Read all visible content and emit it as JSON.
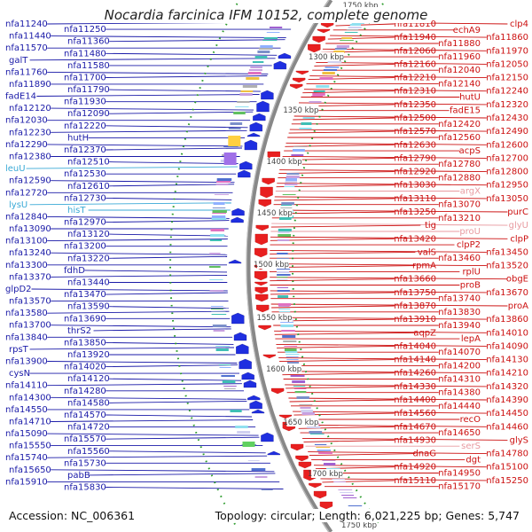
{
  "title": "Nocardia farcinica IFM 10152, complete genome",
  "accession": "Accession: NC_006361",
  "topology_text": "Topology: circular; Length: 6,021,225 bp; Genes: 5,747",
  "colors": {
    "forward_gene": "#e82020",
    "reverse_gene": "#1f2fe0",
    "left_label": "#1a1aa8",
    "right_label": "#cc1010",
    "rna_label": "#39a9d6",
    "faded_label": "#e89aa0",
    "backbone": "#888888",
    "tick_dot": "#2a9a2a"
  },
  "kbp_ticks": [
    {
      "label": "1750 kbp",
      "side": "top"
    },
    {
      "label": "1300 kbp"
    },
    {
      "label": "1350 kbp"
    },
    {
      "label": "1400 kbp"
    },
    {
      "label": "1450 kbp"
    },
    {
      "label": "1500 kbp"
    },
    {
      "label": "1550 kbp"
    },
    {
      "label": "1600 kbp"
    },
    {
      "label": "1650 kbp"
    },
    {
      "label": "1700 kbp"
    },
    {
      "label": "1750 kbp",
      "side": "bottom"
    }
  ],
  "left_labels": [
    {
      "text": "nfa11240"
    },
    {
      "text": "nfa11250"
    },
    {
      "text": "nfa11440"
    },
    {
      "text": "nfa11360"
    },
    {
      "text": "nfa11570"
    },
    {
      "text": "nfa11480"
    },
    {
      "text": "galT"
    },
    {
      "text": "nfa11580"
    },
    {
      "text": "nfa11760"
    },
    {
      "text": "nfa11700"
    },
    {
      "text": "nfa11890"
    },
    {
      "text": "nfa11790"
    },
    {
      "text": "fadE14"
    },
    {
      "text": "nfa11930"
    },
    {
      "text": "nfa12120"
    },
    {
      "text": "nfa12090"
    },
    {
      "text": "nfa12030"
    },
    {
      "text": "nfa12220"
    },
    {
      "text": "nfa12230"
    },
    {
      "text": "hutH"
    },
    {
      "text": "nfa12290"
    },
    {
      "text": "nfa12370"
    },
    {
      "text": "nfa12380"
    },
    {
      "text": "nfa12510"
    },
    {
      "text": "leuU",
      "rna": true
    },
    {
      "text": "nfa12530"
    },
    {
      "text": "nfa12590"
    },
    {
      "text": "nfa12610"
    },
    {
      "text": "nfa12720"
    },
    {
      "text": "nfa12730"
    },
    {
      "text": "lysU",
      "rna": true
    },
    {
      "text": "hisT",
      "rna": true
    },
    {
      "text": "nfa12840"
    },
    {
      "text": "nfa12970"
    },
    {
      "text": "nfa13090"
    },
    {
      "text": "nfa13120"
    },
    {
      "text": "nfa13100"
    },
    {
      "text": "nfa13200"
    },
    {
      "text": "nfa13240"
    },
    {
      "text": "nfa13220"
    },
    {
      "text": "nfa13300"
    },
    {
      "text": "fdhD"
    },
    {
      "text": "nfa13370"
    },
    {
      "text": "nfa13440"
    },
    {
      "text": "glpD2"
    },
    {
      "text": "nfa13470"
    },
    {
      "text": "nfa13570"
    },
    {
      "text": "nfa13590"
    },
    {
      "text": "nfa13580"
    },
    {
      "text": "nfa13690"
    },
    {
      "text": "nfa13700"
    },
    {
      "text": "thrS2"
    },
    {
      "text": "nfa13840"
    },
    {
      "text": "nfa13850"
    },
    {
      "text": "rpsT"
    },
    {
      "text": "nfa13920"
    },
    {
      "text": "nfa13900"
    },
    {
      "text": "nfa14020"
    },
    {
      "text": "cysN"
    },
    {
      "text": "nfa14120"
    },
    {
      "text": "nfa14110"
    },
    {
      "text": "nfa14280"
    },
    {
      "text": "nfa14300"
    },
    {
      "text": "nfa14580"
    },
    {
      "text": "nfa14550"
    },
    {
      "text": "nfa14570"
    },
    {
      "text": "nfa14710"
    },
    {
      "text": "nfa14720"
    },
    {
      "text": "nfa15090"
    },
    {
      "text": "nfa15570"
    },
    {
      "text": "nfa15550"
    },
    {
      "text": "nfa15560"
    },
    {
      "text": "nfa15740"
    },
    {
      "text": "nfa15730"
    },
    {
      "text": "nfa15650"
    },
    {
      "text": "pabB"
    },
    {
      "text": "nfa15910"
    },
    {
      "text": "nfa15830"
    }
  ],
  "right_labels": [
    {
      "text": "clp4"
    },
    {
      "text": "echA9"
    },
    {
      "text": "nfa11810"
    },
    {
      "text": "nfa11860"
    },
    {
      "text": "nfa11880"
    },
    {
      "text": "nfa11940"
    },
    {
      "text": "nfa11970"
    },
    {
      "text": "nfa11960"
    },
    {
      "text": "nfa12060"
    },
    {
      "text": "nfa12050"
    },
    {
      "text": "nfa12040"
    },
    {
      "text": "nfa12160"
    },
    {
      "text": "nfa12150"
    },
    {
      "text": "nfa12140"
    },
    {
      "text": "nfa12210"
    },
    {
      "text": "nfa12240"
    },
    {
      "text": "hutU"
    },
    {
      "text": "nfa12310"
    },
    {
      "text": "nfa12320"
    },
    {
      "text": "fadE15"
    },
    {
      "text": "nfa12350"
    },
    {
      "text": "nfa12430"
    },
    {
      "text": "nfa12420"
    },
    {
      "text": "nfa12500"
    },
    {
      "text": "nfa12490"
    },
    {
      "text": "nfa12560"
    },
    {
      "text": "nfa12570"
    },
    {
      "text": "nfa12600"
    },
    {
      "text": "acpS"
    },
    {
      "text": "nfa12630"
    },
    {
      "text": "nfa12700"
    },
    {
      "text": "nfa12780"
    },
    {
      "text": "nfa12790"
    },
    {
      "text": "nfa12800"
    },
    {
      "text": "nfa12880"
    },
    {
      "text": "nfa12920"
    },
    {
      "text": "nfa12950"
    },
    {
      "text": "argX",
      "faded": true
    },
    {
      "text": "nfa13030"
    },
    {
      "text": "nfa13050"
    },
    {
      "text": "nfa13070"
    },
    {
      "text": "nfa13110"
    },
    {
      "text": "purC"
    },
    {
      "text": "nfa13210"
    },
    {
      "text": "nfa13250"
    },
    {
      "text": "glyU",
      "faded": true
    },
    {
      "text": "proU",
      "faded": true
    },
    {
      "text": "tig"
    },
    {
      "text": "clpP"
    },
    {
      "text": "clpP2"
    },
    {
      "text": "nfa13420"
    },
    {
      "text": "nfa13450"
    },
    {
      "text": "nfa13460"
    },
    {
      "text": "valS"
    },
    {
      "text": "nfa13520"
    },
    {
      "text": "rplU"
    },
    {
      "text": "rpmA"
    },
    {
      "text": "obgE"
    },
    {
      "text": "proB"
    },
    {
      "text": "nfa13660"
    },
    {
      "text": "nfa13670"
    },
    {
      "text": "nfa13740"
    },
    {
      "text": "nfa13750"
    },
    {
      "text": "proA"
    },
    {
      "text": "nfa13830"
    },
    {
      "text": "nfa13870"
    },
    {
      "text": "nfa13860"
    },
    {
      "text": "nfa13940"
    },
    {
      "text": "nfa13910"
    },
    {
      "text": "nfa14010"
    },
    {
      "text": "lepA"
    },
    {
      "text": "aqpZ"
    },
    {
      "text": "nfa14090"
    },
    {
      "text": "nfa14070"
    },
    {
      "text": "nfa14040"
    },
    {
      "text": "nfa14130"
    },
    {
      "text": "nfa14200"
    },
    {
      "text": "nfa14140"
    },
    {
      "text": "nfa14210"
    },
    {
      "text": "nfa14310"
    },
    {
      "text": "nfa14260"
    },
    {
      "text": "nfa14320"
    },
    {
      "text": "nfa14380"
    },
    {
      "text": "nfa14330"
    },
    {
      "text": "nfa14390"
    },
    {
      "text": "nfa14440"
    },
    {
      "text": "nfa14400"
    },
    {
      "text": "nfa14450"
    },
    {
      "text": "recO"
    },
    {
      "text": "nfa14560"
    },
    {
      "text": "nfa14460"
    },
    {
      "text": "nfa14650"
    },
    {
      "text": "nfa14670"
    },
    {
      "text": "glyS"
    },
    {
      "text": "serS",
      "faded": true
    },
    {
      "text": "nfa14930"
    },
    {
      "text": "nfa14780"
    },
    {
      "text": "dgt"
    },
    {
      "text": "dnaG"
    },
    {
      "text": "nfa15100"
    },
    {
      "text": "nfa14950"
    },
    {
      "text": "nfa14920"
    },
    {
      "text": "nfa15250"
    },
    {
      "text": "nfa15170"
    },
    {
      "text": "nfa15110"
    }
  ]
}
